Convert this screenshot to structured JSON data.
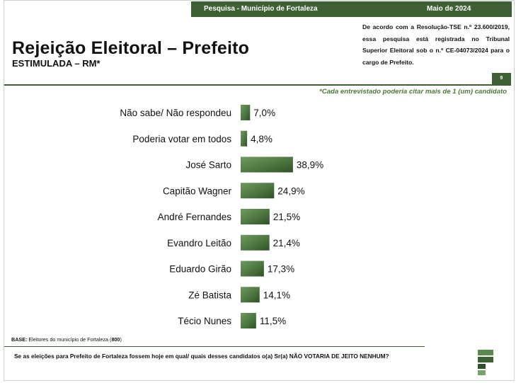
{
  "header": {
    "survey": "Pesquisa - Município de Fortaleza",
    "date": "Maio de 2024",
    "title": "Rejeição Eleitoral – Prefeito",
    "subtitle": "ESTIMULADA – RM*",
    "legal": "De acordo com a Resolução-TSE n.º 23.600/2019, essa pesquisa está registrada no Tribunal Superior Eleitoral sob o n.º CE-04073/2024 para o cargo de Prefeito.",
    "page": "9"
  },
  "note": "*Cada entrevistado poderia citar mais de 1 (um) candidato",
  "footer": {
    "base_label": "BASE:",
    "base_text": " Eleitores do município de Fortaleza (",
    "base_n": "800",
    "base_close": ")",
    "question": "Se as eleições para Prefeito de Fortaleza fossem hoje em qual/ quais desses candidatos o(a) Sr(a) NÃO VOTARIA DE JEITO NENHUM?"
  },
  "colors": {
    "accent": "#3d6133",
    "note": "#4a7a3a"
  },
  "chart_data": {
    "type": "bar",
    "orientation": "horizontal",
    "categories": [
      "Não sabe/ Não respondeu",
      "Poderia votar em todos",
      "José Sarto",
      "Capitão Wagner",
      "André Fernandes",
      "Evandro Leitão",
      "Eduardo Girão",
      "Zé Batista",
      "Técio Nunes"
    ],
    "values": [
      7.0,
      4.8,
      38.9,
      24.9,
      21.5,
      21.4,
      17.3,
      14.1,
      11.5
    ],
    "value_labels": [
      "7,0%",
      "4,8%",
      "38,9%",
      "24,9%",
      "21,5%",
      "21,4%",
      "17,3%",
      "14,1%",
      "11,5%"
    ],
    "xlim": [
      0,
      100
    ],
    "grid": false,
    "legend": "none"
  }
}
